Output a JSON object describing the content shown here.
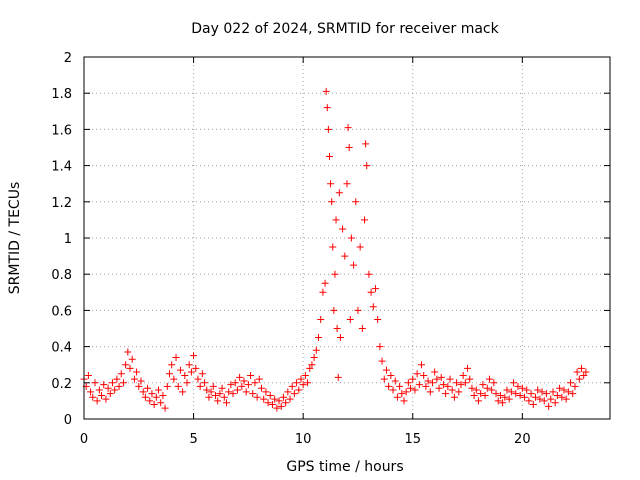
{
  "chart_data": {
    "type": "scatter",
    "title": "Day 022 of 2024, SRMTID for receiver mack",
    "xlabel": "GPS time / hours",
    "ylabel": "SRMTID / TECUs",
    "xlim": [
      0,
      24
    ],
    "ylim": [
      0,
      2
    ],
    "xticks": [
      0,
      5,
      10,
      15,
      20
    ],
    "yticks": [
      0,
      0.2,
      0.4,
      0.6,
      0.8,
      1,
      1.2,
      1.4,
      1.6,
      1.8,
      2
    ],
    "xtick_labels": [
      "0",
      "5",
      "10",
      "15",
      "20"
    ],
    "ytick_labels": [
      "0",
      "0.2",
      "0.4",
      "0.6",
      "0.8",
      "1",
      "1.2",
      "1.4",
      "1.6",
      "1.8",
      "2"
    ],
    "grid": true,
    "marker": "+",
    "color": "#ff0000",
    "series": [
      {
        "name": "SRMTID",
        "points": [
          [
            0.0,
            0.22
          ],
          [
            0.1,
            0.18
          ],
          [
            0.2,
            0.24
          ],
          [
            0.3,
            0.15
          ],
          [
            0.4,
            0.12
          ],
          [
            0.5,
            0.2
          ],
          [
            0.6,
            0.1
          ],
          [
            0.7,
            0.16
          ],
          [
            0.8,
            0.13
          ],
          [
            0.9,
            0.19
          ],
          [
            1.0,
            0.11
          ],
          [
            1.1,
            0.17
          ],
          [
            1.2,
            0.14
          ],
          [
            1.3,
            0.2
          ],
          [
            1.4,
            0.16
          ],
          [
            1.5,
            0.22
          ],
          [
            1.6,
            0.18
          ],
          [
            1.7,
            0.25
          ],
          [
            1.8,
            0.2
          ],
          [
            1.9,
            0.3
          ],
          [
            2.0,
            0.37
          ],
          [
            2.1,
            0.28
          ],
          [
            2.2,
            0.33
          ],
          [
            2.3,
            0.22
          ],
          [
            2.4,
            0.26
          ],
          [
            2.5,
            0.18
          ],
          [
            2.6,
            0.21
          ],
          [
            2.7,
            0.15
          ],
          [
            2.8,
            0.12
          ],
          [
            2.9,
            0.17
          ],
          [
            3.0,
            0.1
          ],
          [
            3.1,
            0.14
          ],
          [
            3.2,
            0.08
          ],
          [
            3.3,
            0.12
          ],
          [
            3.4,
            0.16
          ],
          [
            3.5,
            0.09
          ],
          [
            3.6,
            0.13
          ],
          [
            3.7,
            0.06
          ],
          [
            3.8,
            0.18
          ],
          [
            3.9,
            0.25
          ],
          [
            4.0,
            0.3
          ],
          [
            4.1,
            0.22
          ],
          [
            4.2,
            0.34
          ],
          [
            4.3,
            0.18
          ],
          [
            4.4,
            0.27
          ],
          [
            4.5,
            0.15
          ],
          [
            4.6,
            0.24
          ],
          [
            4.7,
            0.2
          ],
          [
            4.8,
            0.3
          ],
          [
            4.9,
            0.26
          ],
          [
            5.0,
            0.35
          ],
          [
            5.1,
            0.28
          ],
          [
            5.2,
            0.22
          ],
          [
            5.3,
            0.18
          ],
          [
            5.4,
            0.25
          ],
          [
            5.5,
            0.2
          ],
          [
            5.6,
            0.16
          ],
          [
            5.7,
            0.12
          ],
          [
            5.8,
            0.15
          ],
          [
            5.9,
            0.18
          ],
          [
            6.0,
            0.13
          ],
          [
            6.1,
            0.1
          ],
          [
            6.2,
            0.14
          ],
          [
            6.3,
            0.17
          ],
          [
            6.4,
            0.12
          ],
          [
            6.5,
            0.09
          ],
          [
            6.6,
            0.15
          ],
          [
            6.7,
            0.19
          ],
          [
            6.8,
            0.14
          ],
          [
            6.9,
            0.2
          ],
          [
            7.0,
            0.16
          ],
          [
            7.1,
            0.23
          ],
          [
            7.2,
            0.18
          ],
          [
            7.3,
            0.21
          ],
          [
            7.4,
            0.15
          ],
          [
            7.5,
            0.19
          ],
          [
            7.6,
            0.24
          ],
          [
            7.7,
            0.14
          ],
          [
            7.8,
            0.2
          ],
          [
            7.9,
            0.12
          ],
          [
            8.0,
            0.22
          ],
          [
            8.1,
            0.17
          ],
          [
            8.2,
            0.11
          ],
          [
            8.3,
            0.15
          ],
          [
            8.4,
            0.09
          ],
          [
            8.5,
            0.13
          ],
          [
            8.6,
            0.08
          ],
          [
            8.7,
            0.11
          ],
          [
            8.8,
            0.06
          ],
          [
            8.9,
            0.1
          ],
          [
            9.0,
            0.07
          ],
          [
            9.1,
            0.12
          ],
          [
            9.2,
            0.09
          ],
          [
            9.3,
            0.15
          ],
          [
            9.4,
            0.11
          ],
          [
            9.5,
            0.18
          ],
          [
            9.6,
            0.14
          ],
          [
            9.7,
            0.2
          ],
          [
            9.8,
            0.16
          ],
          [
            9.9,
            0.22
          ],
          [
            10.0,
            0.19
          ],
          [
            10.1,
            0.24
          ],
          [
            10.2,
            0.2
          ],
          [
            10.3,
            0.28
          ],
          [
            10.4,
            0.3
          ],
          [
            10.5,
            0.34
          ],
          [
            10.6,
            0.38
          ],
          [
            10.7,
            0.45
          ],
          [
            10.8,
            0.55
          ],
          [
            10.9,
            0.7
          ],
          [
            11.0,
            0.75
          ],
          [
            11.05,
            1.81
          ],
          [
            11.1,
            1.72
          ],
          [
            11.15,
            1.6
          ],
          [
            11.2,
            1.45
          ],
          [
            11.25,
            1.3
          ],
          [
            11.3,
            1.2
          ],
          [
            11.35,
            0.95
          ],
          [
            11.4,
            0.6
          ],
          [
            11.45,
            0.8
          ],
          [
            11.5,
            1.1
          ],
          [
            11.55,
            0.5
          ],
          [
            11.6,
            0.23
          ],
          [
            11.65,
            1.25
          ],
          [
            11.7,
            0.45
          ],
          [
            11.8,
            1.05
          ],
          [
            11.9,
            0.9
          ],
          [
            12.0,
            1.3
          ],
          [
            12.05,
            1.61
          ],
          [
            12.1,
            1.5
          ],
          [
            12.15,
            0.55
          ],
          [
            12.2,
            1.0
          ],
          [
            12.3,
            0.85
          ],
          [
            12.4,
            1.2
          ],
          [
            12.5,
            0.6
          ],
          [
            12.6,
            0.95
          ],
          [
            12.7,
            0.5
          ],
          [
            12.8,
            1.1
          ],
          [
            12.85,
            1.52
          ],
          [
            12.9,
            1.4
          ],
          [
            13.0,
            0.8
          ],
          [
            13.1,
            0.7
          ],
          [
            13.2,
            0.62
          ],
          [
            13.3,
            0.72
          ],
          [
            13.4,
            0.55
          ],
          [
            13.5,
            0.4
          ],
          [
            13.6,
            0.32
          ],
          [
            13.7,
            0.22
          ],
          [
            13.8,
            0.27
          ],
          [
            13.9,
            0.18
          ],
          [
            14.0,
            0.24
          ],
          [
            14.1,
            0.16
          ],
          [
            14.2,
            0.21
          ],
          [
            14.3,
            0.12
          ],
          [
            14.4,
            0.18
          ],
          [
            14.5,
            0.14
          ],
          [
            14.6,
            0.1
          ],
          [
            14.7,
            0.15
          ],
          [
            14.8,
            0.2
          ],
          [
            14.9,
            0.17
          ],
          [
            15.0,
            0.22
          ],
          [
            15.1,
            0.16
          ],
          [
            15.2,
            0.25
          ],
          [
            15.3,
            0.19
          ],
          [
            15.4,
            0.3
          ],
          [
            15.5,
            0.24
          ],
          [
            15.6,
            0.18
          ],
          [
            15.7,
            0.21
          ],
          [
            15.8,
            0.15
          ],
          [
            15.9,
            0.2
          ],
          [
            16.0,
            0.26
          ],
          [
            16.1,
            0.22
          ],
          [
            16.2,
            0.17
          ],
          [
            16.3,
            0.23
          ],
          [
            16.4,
            0.19
          ],
          [
            16.5,
            0.14
          ],
          [
            16.6,
            0.18
          ],
          [
            16.7,
            0.22
          ],
          [
            16.8,
            0.16
          ],
          [
            16.9,
            0.12
          ],
          [
            17.0,
            0.2
          ],
          [
            17.1,
            0.15
          ],
          [
            17.2,
            0.19
          ],
          [
            17.3,
            0.24
          ],
          [
            17.4,
            0.2
          ],
          [
            17.5,
            0.28
          ],
          [
            17.6,
            0.22
          ],
          [
            17.7,
            0.17
          ],
          [
            17.8,
            0.13
          ],
          [
            17.9,
            0.16
          ],
          [
            18.0,
            0.1
          ],
          [
            18.1,
            0.14
          ],
          [
            18.2,
            0.19
          ],
          [
            18.3,
            0.13
          ],
          [
            18.4,
            0.17
          ],
          [
            18.5,
            0.22
          ],
          [
            18.6,
            0.16
          ],
          [
            18.7,
            0.2
          ],
          [
            18.8,
            0.14
          ],
          [
            18.9,
            0.1
          ],
          [
            19.0,
            0.13
          ],
          [
            19.1,
            0.09
          ],
          [
            19.2,
            0.12
          ],
          [
            19.3,
            0.16
          ],
          [
            19.4,
            0.11
          ],
          [
            19.5,
            0.15
          ],
          [
            19.6,
            0.2
          ],
          [
            19.7,
            0.14
          ],
          [
            19.8,
            0.18
          ],
          [
            19.9,
            0.13
          ],
          [
            20.0,
            0.17
          ],
          [
            20.1,
            0.12
          ],
          [
            20.2,
            0.16
          ],
          [
            20.3,
            0.1
          ],
          [
            20.4,
            0.14
          ],
          [
            20.5,
            0.08
          ],
          [
            20.6,
            0.12
          ],
          [
            20.7,
            0.16
          ],
          [
            20.8,
            0.11
          ],
          [
            20.9,
            0.15
          ],
          [
            21.0,
            0.1
          ],
          [
            21.1,
            0.14
          ],
          [
            21.2,
            0.07
          ],
          [
            21.3,
            0.11
          ],
          [
            21.4,
            0.15
          ],
          [
            21.5,
            0.09
          ],
          [
            21.6,
            0.13
          ],
          [
            21.7,
            0.17
          ],
          [
            21.8,
            0.12
          ],
          [
            21.9,
            0.16
          ],
          [
            22.0,
            0.11
          ],
          [
            22.1,
            0.15
          ],
          [
            22.2,
            0.2
          ],
          [
            22.3,
            0.14
          ],
          [
            22.4,
            0.18
          ],
          [
            22.5,
            0.26
          ],
          [
            22.6,
            0.22
          ],
          [
            22.7,
            0.28
          ],
          [
            22.8,
            0.24
          ],
          [
            22.9,
            0.26
          ]
        ]
      }
    ]
  }
}
